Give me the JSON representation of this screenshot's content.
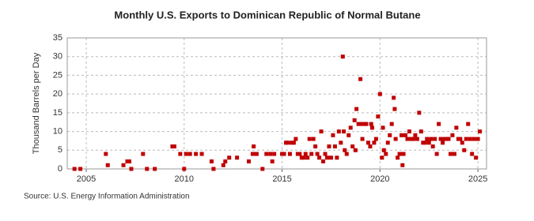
{
  "chart_data": {
    "type": "scatter",
    "title": "Monthly U.S. Exports to Dominican Republic of Normal Butane",
    "y_label": "Thousand Barrels per Day",
    "source": "Source: U.S. Energy Information Administration",
    "color": "#c00000",
    "grid": true,
    "xlim": [
      2004.03,
      2025.44
    ],
    "xticks": [
      2005,
      2010,
      2015,
      2020,
      2025
    ],
    "ylim": [
      0,
      35
    ],
    "yticks": [
      0,
      5,
      10,
      15,
      20,
      25,
      30,
      35
    ],
    "x": [
      2004.4,
      2004.7,
      2006.0,
      2006.1,
      2006.9,
      2007.1,
      2007.2,
      2007.3,
      2007.9,
      2008.1,
      2008.5,
      2009.4,
      2009.5,
      2009.8,
      2010.0,
      2010.1,
      2010.3,
      2010.6,
      2010.9,
      2011.4,
      2011.5,
      2012.0,
      2012.1,
      2012.3,
      2012.7,
      2013.3,
      2013.5,
      2013.55,
      2013.7,
      2014.0,
      2014.2,
      2014.4,
      2014.5,
      2014.6,
      2015.0,
      2015.1,
      2015.2,
      2015.3,
      2015.4,
      2015.5,
      2015.6,
      2015.7,
      2015.8,
      2015.9,
      2016.0,
      2016.1,
      2016.2,
      2016.3,
      2016.4,
      2016.5,
      2016.6,
      2016.7,
      2016.8,
      2016.9,
      2017.0,
      2017.1,
      2017.2,
      2017.3,
      2017.4,
      2017.5,
      2017.6,
      2017.7,
      2017.8,
      2017.9,
      2018.0,
      2018.1,
      2018.15,
      2018.2,
      2018.3,
      2018.4,
      2018.5,
      2018.6,
      2018.7,
      2018.75,
      2018.8,
      2018.9,
      2019.0,
      2019.05,
      2019.1,
      2019.2,
      2019.3,
      2019.4,
      2019.5,
      2019.55,
      2019.6,
      2019.7,
      2019.8,
      2019.9,
      2020.0,
      2020.1,
      2020.15,
      2020.2,
      2020.3,
      2020.4,
      2020.5,
      2020.6,
      2020.7,
      2020.75,
      2020.8,
      2020.9,
      2021.0,
      2021.1,
      2021.15,
      2021.2,
      2021.3,
      2021.4,
      2021.5,
      2021.6,
      2021.7,
      2021.8,
      2021.9,
      2022.0,
      2022.1,
      2022.2,
      2022.3,
      2022.4,
      2022.5,
      2022.6,
      2022.7,
      2022.8,
      2022.9,
      2023.0,
      2023.1,
      2023.2,
      2023.3,
      2023.4,
      2023.5,
      2023.6,
      2023.7,
      2023.8,
      2023.9,
      2024.0,
      2024.1,
      2024.2,
      2024.3,
      2024.4,
      2024.5,
      2024.6,
      2024.7,
      2024.8,
      2024.9,
      2025.0,
      2025.1
    ],
    "values": [
      0,
      0,
      4,
      1,
      1,
      2,
      2,
      0,
      4,
      0,
      0,
      6,
      6,
      4,
      0,
      4,
      4,
      4,
      4,
      2,
      0,
      1,
      2,
      3,
      3,
      2,
      4,
      6,
      4,
      0,
      4,
      4,
      2,
      4,
      4,
      4,
      7,
      7,
      4,
      7,
      7,
      8,
      4,
      4,
      3,
      3,
      4,
      3,
      8,
      4,
      8,
      6,
      4,
      3,
      10,
      2,
      4,
      3,
      6,
      3,
      9,
      6,
      3,
      10,
      7,
      30,
      10,
      5,
      4,
      9,
      11,
      6,
      13,
      5,
      16,
      12,
      24,
      12,
      8,
      12,
      12,
      7,
      6,
      12,
      11,
      7,
      8,
      14,
      20,
      3,
      11,
      5,
      4,
      7,
      9,
      12,
      19,
      16,
      8,
      3,
      4,
      9,
      1,
      4,
      9,
      8,
      10,
      8,
      8,
      9,
      8,
      15,
      10,
      7,
      7,
      8,
      7,
      8,
      6,
      8,
      4,
      12,
      8,
      7,
      8,
      8,
      8,
      4,
      9,
      4,
      11,
      8,
      8,
      7,
      5,
      8,
      12,
      8,
      4,
      8,
      3,
      8,
      10
    ]
  }
}
